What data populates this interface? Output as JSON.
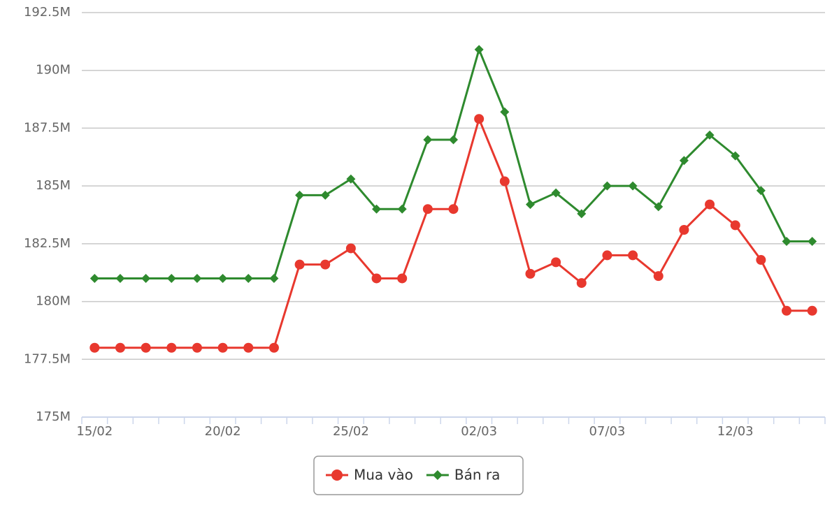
{
  "chart_data": {
    "type": "line",
    "categories": [
      "15/02",
      null,
      null,
      null,
      null,
      "20/02",
      null,
      null,
      null,
      null,
      "25/02",
      null,
      null,
      null,
      null,
      "02/03",
      null,
      null,
      null,
      null,
      "07/03",
      null,
      null,
      null,
      null,
      "12/03",
      null,
      null,
      null
    ],
    "series": [
      {
        "name": "Mua vào",
        "color": "#e8382e",
        "marker": "circle",
        "values": [
          178.0,
          178.0,
          178.0,
          178.0,
          178.0,
          178.0,
          178.0,
          178.0,
          181.6,
          181.6,
          182.3,
          181.0,
          181.0,
          184.0,
          184.0,
          187.9,
          185.2,
          181.2,
          181.7,
          180.8,
          182.0,
          182.0,
          181.1,
          183.1,
          184.2,
          183.3,
          181.8,
          179.6,
          179.6
        ]
      },
      {
        "name": "Bán ra",
        "color": "#2e8a2e",
        "marker": "diamond",
        "values": [
          181.0,
          181.0,
          181.0,
          181.0,
          181.0,
          181.0,
          181.0,
          181.0,
          184.6,
          184.6,
          185.3,
          184.0,
          184.0,
          187.0,
          187.0,
          190.9,
          188.2,
          184.2,
          184.7,
          183.8,
          185.0,
          185.0,
          184.1,
          186.1,
          187.2,
          186.3,
          184.8,
          182.6,
          182.6
        ]
      }
    ],
    "ylim": [
      175,
      192.5
    ],
    "yticks": [
      {
        "value": 175,
        "label": "175M"
      },
      {
        "value": 177.5,
        "label": "177.5M"
      },
      {
        "value": 180,
        "label": "180M"
      },
      {
        "value": 182.5,
        "label": "182.5M"
      },
      {
        "value": 185,
        "label": "185M"
      },
      {
        "value": 187.5,
        "label": "187.5M"
      },
      {
        "value": 190,
        "label": "190M"
      },
      {
        "value": 192.5,
        "label": "192.5M"
      }
    ],
    "grid": true,
    "legend": "bottom"
  }
}
